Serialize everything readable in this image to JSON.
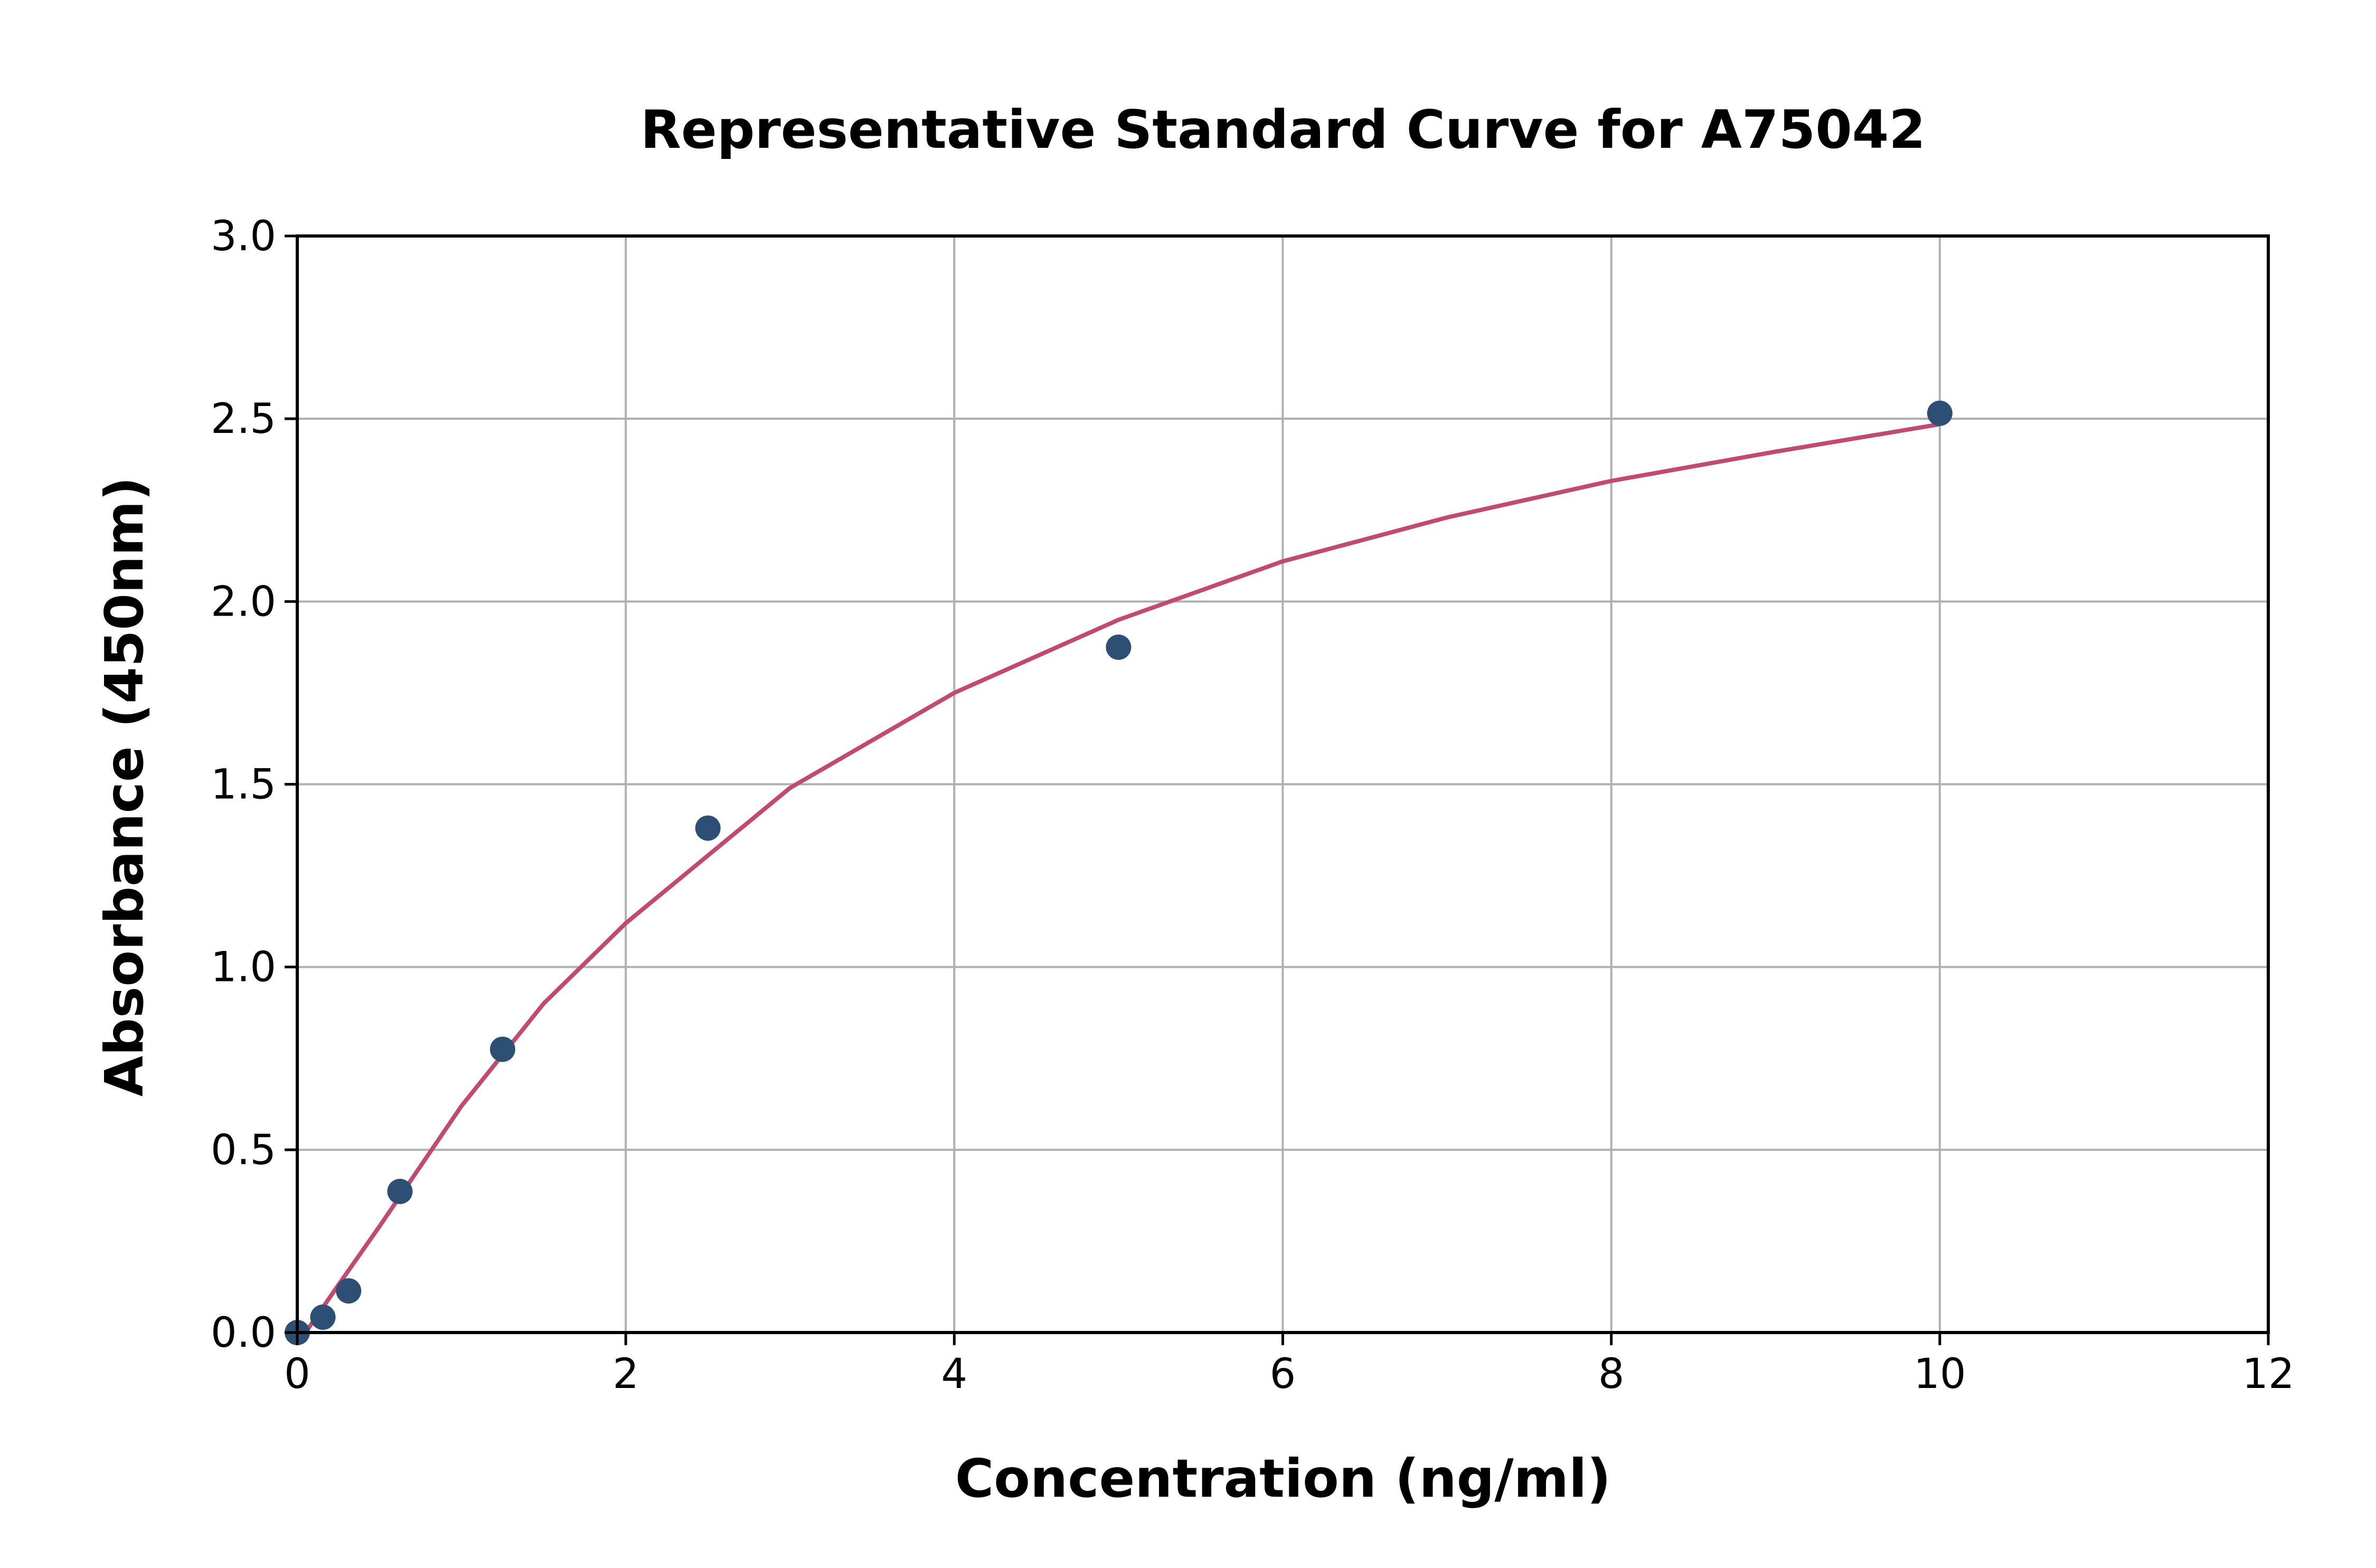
{
  "chart_data": {
    "type": "scatter",
    "title": "Representative Standard Curve for A75042",
    "xlabel": "Concentration (ng/ml)",
    "ylabel": "Absorbance (450nm)",
    "xlim": [
      0,
      12
    ],
    "ylim": [
      0,
      3.0
    ],
    "xticks": [
      "0",
      "2",
      "4",
      "6",
      "8",
      "10",
      "12"
    ],
    "yticks": [
      "0.0",
      "0.5",
      "1.0",
      "1.5",
      "2.0",
      "2.5",
      "3.0"
    ],
    "grid": true,
    "series": [
      {
        "type": "scatter",
        "color": "#2e4f74",
        "x": [
          0,
          0.156,
          0.3125,
          0.625,
          1.25,
          2.5,
          5,
          10
        ],
        "y": [
          0.0,
          0.042,
          0.114,
          0.386,
          0.775,
          1.38,
          1.875,
          2.515
        ]
      },
      {
        "type": "line",
        "color": "#c04a70",
        "x": [
          0.05,
          0.25,
          0.5,
          1,
          1.5,
          2,
          3,
          4,
          5,
          6,
          7,
          8,
          9,
          10
        ],
        "y": [
          0.0,
          0.13,
          0.29,
          0.62,
          0.9,
          1.12,
          1.49,
          1.75,
          1.95,
          2.11,
          2.23,
          2.33,
          2.41,
          2.485
        ]
      }
    ]
  }
}
